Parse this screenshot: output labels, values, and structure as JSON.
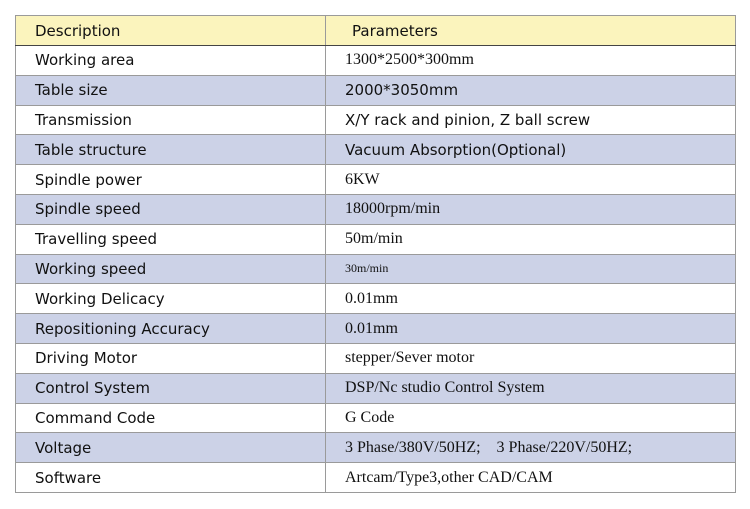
{
  "header": {
    "description": "Description",
    "parameters": "Parameters"
  },
  "table": {
    "rows": [
      [
        "Working area",
        "1300*2500*300mm"
      ],
      [
        "Table size",
        "2000*3050mm"
      ],
      [
        "Transmission",
        "X/Y rack and pinion, Z ball screw"
      ],
      [
        "Table structure",
        "Vacuum Absorption(Optional)"
      ],
      [
        "Spindle power",
        "6KW"
      ],
      [
        "Spindle speed",
        "18000rpm/min"
      ],
      [
        "Travelling speed",
        "50m/min"
      ],
      [
        "Working speed",
        "30m/min"
      ],
      [
        "Working Delicacy",
        "0.01mm"
      ],
      [
        "Repositioning Accuracy",
        "0.01mm"
      ],
      [
        "Driving Motor",
        "stepper/Sever motor"
      ],
      [
        "Control System",
        "DSP/Nc studio Control System"
      ],
      [
        "Command Code",
        "G Code"
      ],
      [
        "Voltage",
        "3 Phase/380V/50HZ;    3 Phase/220V/50HZ;"
      ],
      [
        "Software",
        "Artcam/Type3,other CAD/CAM"
      ]
    ]
  }
}
